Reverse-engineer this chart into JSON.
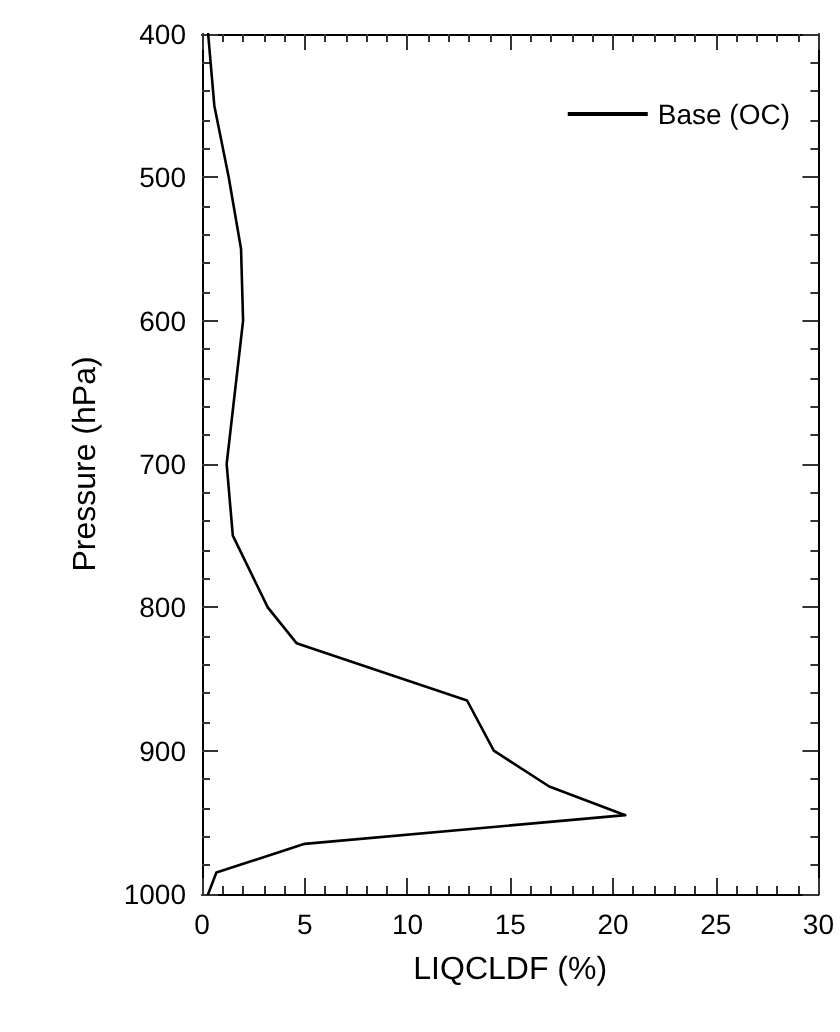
{
  "chart_data": {
    "type": "line",
    "xlabel": "LIQCLDF (%)",
    "ylabel": "Pressure (hPa)",
    "xlim": [
      0,
      30
    ],
    "xticks": [
      0,
      5,
      10,
      15,
      20,
      25,
      30
    ],
    "ylim": [
      1000,
      400
    ],
    "yticks": [
      400,
      500,
      600,
      700,
      800,
      900,
      1000
    ],
    "legend": "top right",
    "marker": "none",
    "line_style": "solid",
    "series": [
      {
        "name": "Base (OC)",
        "color": "#000000",
        "x": [
          0.3,
          0.6,
          1.3,
          1.9,
          2.0,
          1.2,
          1.5,
          3.2,
          4.6,
          12.9,
          14.2,
          16.9,
          20.6,
          5.0,
          0.7,
          0.3
        ],
        "values": [
          400,
          450,
          500,
          550,
          600,
          700,
          750,
          800,
          825,
          865,
          900,
          925,
          945,
          965,
          985,
          1000
        ]
      }
    ]
  }
}
